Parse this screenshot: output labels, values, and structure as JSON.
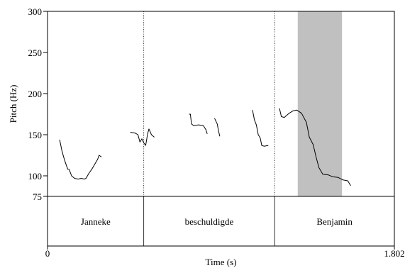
{
  "chart_data": {
    "type": "line",
    "title": "",
    "xlabel": "Time (s)",
    "ylabel": "Pitch (Hz)",
    "xlim": [
      0,
      1.802
    ],
    "ylim": [
      75,
      300
    ],
    "x_ticks": [
      {
        "value": 0,
        "label": "0"
      },
      {
        "value": 1.802,
        "label": "1.802"
      }
    ],
    "y_ticks": [
      {
        "value": 300,
        "label": "300"
      },
      {
        "value": 250,
        "label": "250"
      },
      {
        "value": 200,
        "label": "200"
      },
      {
        "value": 150,
        "label": "150"
      },
      {
        "value": 100,
        "label": "100"
      },
      {
        "value": 75,
        "label": "75"
      }
    ],
    "highlight": {
      "x_start": 1.3,
      "x_end": 1.53,
      "color": "#c0c0c0"
    },
    "word_boundaries": [
      0.5,
      1.18
    ],
    "words": [
      {
        "label": "Janneke",
        "start": 0.0,
        "end": 0.5
      },
      {
        "label": "beschuldigde",
        "start": 0.5,
        "end": 1.18
      },
      {
        "label": "Benjamin",
        "start": 1.18,
        "end": 1.802
      }
    ],
    "series": [
      {
        "segments": [
          [
            [
              0.063,
              144
            ],
            [
              0.075,
              130
            ],
            [
              0.09,
              118
            ],
            [
              0.105,
              108
            ],
            [
              0.112,
              108
            ],
            [
              0.125,
              100
            ],
            [
              0.14,
              97
            ],
            [
              0.16,
              96
            ],
            [
              0.175,
              97
            ],
            [
              0.19,
              96
            ],
            [
              0.2,
              97
            ],
            [
              0.215,
              103
            ],
            [
              0.23,
              108
            ],
            [
              0.245,
              114
            ],
            [
              0.26,
              120
            ],
            [
              0.268,
              125
            ],
            [
              0.28,
              123
            ]
          ],
          [
            [
              0.43,
              153
            ],
            [
              0.455,
              152
            ],
            [
              0.47,
              150
            ],
            [
              0.48,
              141
            ],
            [
              0.49,
              145
            ],
            [
              0.5,
              140
            ],
            [
              0.51,
              137
            ],
            [
              0.52,
              151
            ],
            [
              0.527,
              157
            ],
            [
              0.54,
              150
            ],
            [
              0.555,
              147
            ]
          ],
          [
            [
              0.735,
              175
            ],
            [
              0.742,
              175
            ],
            [
              0.748,
              163
            ],
            [
              0.76,
              161
            ],
            [
              0.785,
              162
            ],
            [
              0.81,
              161
            ],
            [
              0.823,
              156
            ],
            [
              0.83,
              151
            ]
          ],
          [
            [
              0.868,
              170
            ],
            [
              0.882,
              163
            ],
            [
              0.888,
              155
            ],
            [
              0.895,
              148
            ]
          ],
          [
            [
              1.065,
              180
            ],
            [
              1.075,
              168
            ],
            [
              1.085,
              162
            ],
            [
              1.095,
              150
            ],
            [
              1.105,
              146
            ],
            [
              1.113,
              137
            ],
            [
              1.125,
              136
            ],
            [
              1.147,
              137
            ]
          ],
          [
            [
              1.205,
              182
            ],
            [
              1.215,
              172
            ],
            [
              1.23,
              171
            ],
            [
              1.255,
              176
            ],
            [
              1.275,
              179
            ],
            [
              1.295,
              180
            ],
            [
              1.32,
              176
            ],
            [
              1.345,
              165
            ],
            [
              1.36,
              147
            ],
            [
              1.38,
              138
            ],
            [
              1.395,
              123
            ],
            [
              1.41,
              110
            ],
            [
              1.43,
              102
            ],
            [
              1.46,
              101
            ],
            [
              1.48,
              99
            ],
            [
              1.51,
              98
            ],
            [
              1.535,
              95
            ],
            [
              1.56,
              94
            ],
            [
              1.575,
              88
            ]
          ]
        ]
      }
    ]
  }
}
